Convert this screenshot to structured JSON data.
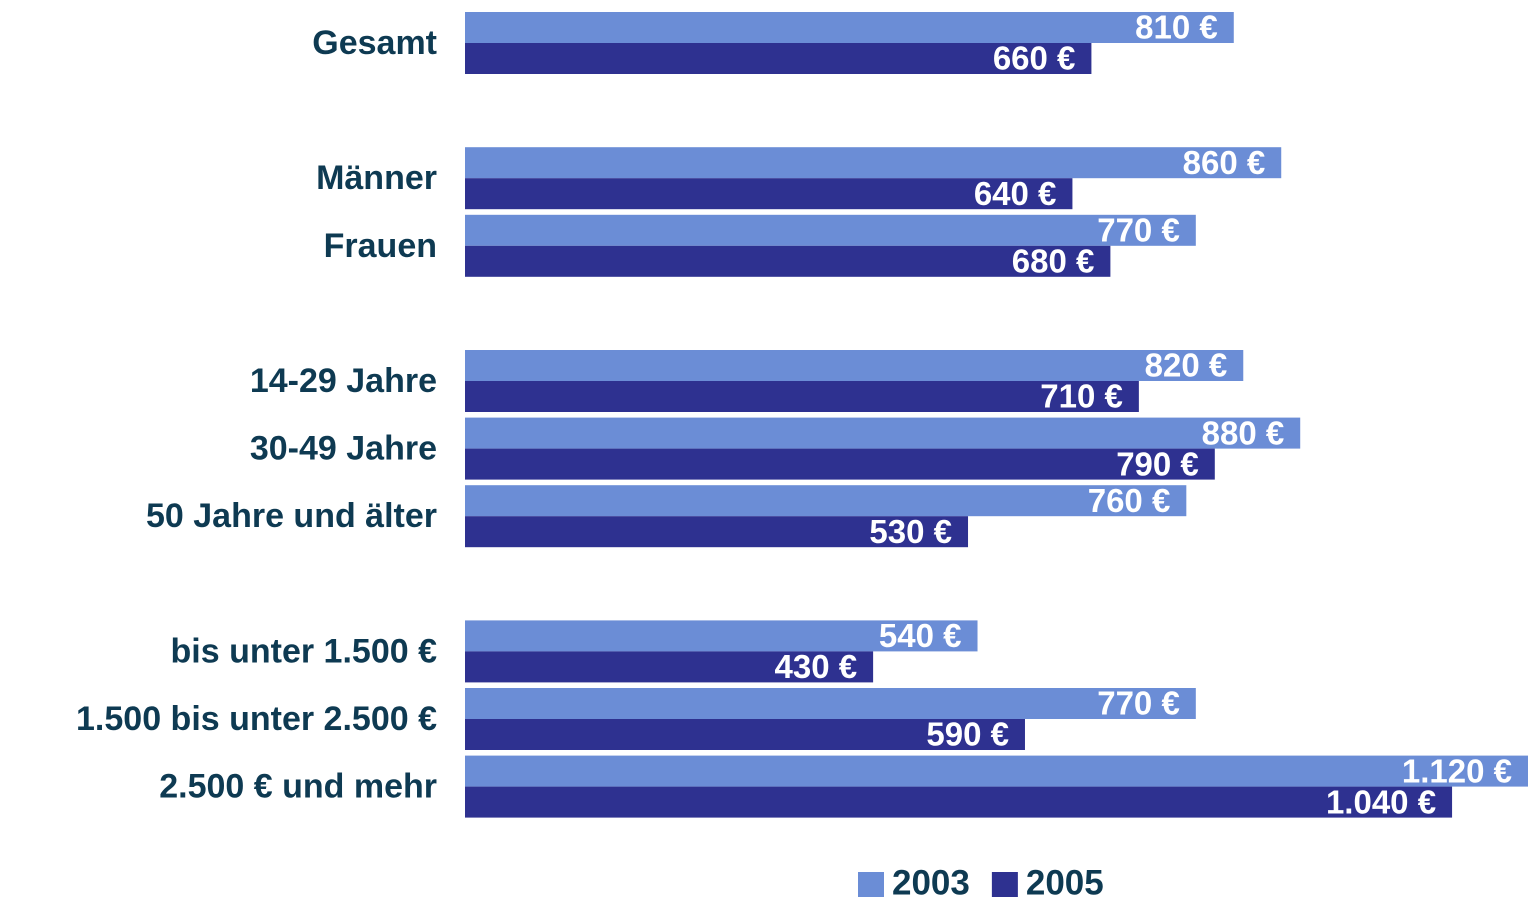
{
  "chart_data": {
    "type": "bar",
    "orientation": "horizontal",
    "categories": [
      "Gesamt",
      "Männer",
      "Frauen",
      "14-29 Jahre",
      "30-49 Jahre",
      "50 Jahre und älter",
      "bis unter 1.500 €",
      "1.500 bis unter 2.500 €",
      "2.500 € und mehr"
    ],
    "series": [
      {
        "name": "2003",
        "color": "#6b8dd6",
        "values": [
          810,
          860,
          770,
          820,
          880,
          760,
          540,
          770,
          1120
        ],
        "value_labels": [
          "810 €",
          "860 €",
          "770 €",
          "820 €",
          "880 €",
          "760 €",
          "540 €",
          "770 €",
          "1.120 €"
        ]
      },
      {
        "name": "2005",
        "color": "#2e3190",
        "values": [
          660,
          640,
          680,
          710,
          790,
          530,
          430,
          590,
          1040
        ],
        "value_labels": [
          "660 €",
          "640 €",
          "680 €",
          "710 €",
          "790 €",
          "530 €",
          "430 €",
          "590 €",
          "1.040 €"
        ]
      }
    ],
    "xlim": [
      0,
      1120
    ],
    "legend": "bottom"
  }
}
